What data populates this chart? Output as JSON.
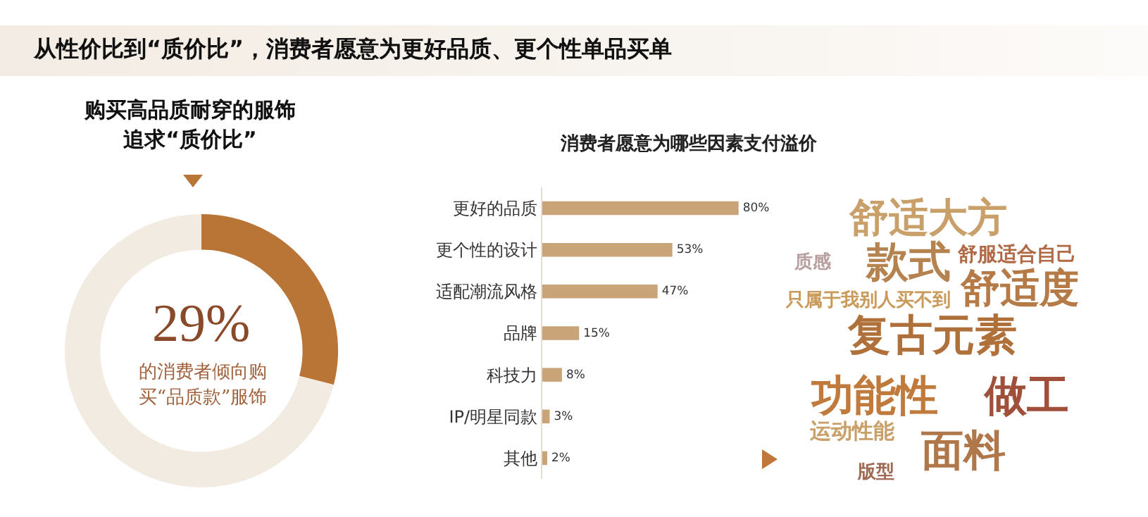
{
  "chart_data": [
    {
      "type": "donut",
      "title": "从性价比到“质价比”，消费者愿意为更好品质、更个性单品买单",
      "subtitle": "购买高品质耐穿的服饰追求“质价比”",
      "categories": [
        null,
        null
      ],
      "values": [
        29,
        71
      ],
      "colors": [
        "#b97536",
        "#f2ebe2"
      ],
      "value_labels": [
        "29%",
        null
      ],
      "annotations": [
        "的消费者倾向购买“品质款”服饰"
      ]
    },
    {
      "type": "bar",
      "orientation": "horizontal",
      "title": "消费者愿意为哪些因素支付溢价",
      "categories": [
        "更好的品质",
        "更个性的设计",
        "适配潮流风格",
        "品牌",
        "科技力",
        "IP/明星同款",
        "其他"
      ],
      "values": [
        80,
        53,
        47,
        15,
        8,
        3,
        2
      ],
      "color": "#c9a478",
      "value_labels": [
        "80%",
        "53%",
        "47%",
        "15%",
        "8%",
        "3%",
        "2%"
      ]
    },
    {
      "type": "other",
      "annotations": [
        "舒适大方",
        "款式",
        "舒服适合自己",
        "质感",
        "舒适度",
        "只属于我别人买不到",
        "复古元素",
        "功能性",
        "做工",
        "运动性能",
        "面料",
        "版型"
      ]
    }
  ]
}
